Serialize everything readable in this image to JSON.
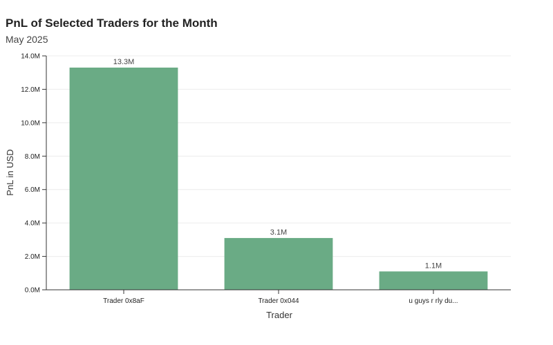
{
  "chart_data": {
    "type": "bar",
    "title": "PnL of Selected Traders for the Month",
    "subtitle": "May 2025",
    "xlabel": "Trader",
    "ylabel": "PnL in USD",
    "categories": [
      "Trader 0x8aF",
      "Trader 0x044",
      "u guys r rly du..."
    ],
    "values": [
      13300000,
      3100000,
      1100000
    ],
    "value_labels": [
      "13.3M",
      "3.1M",
      "1.1M"
    ],
    "y_ticks": [
      0,
      2000000,
      4000000,
      6000000,
      8000000,
      10000000,
      12000000,
      14000000
    ],
    "y_tick_labels": [
      "0.0M",
      "2.0M",
      "4.0M",
      "6.0M",
      "8.0M",
      "10.0M",
      "12.0M",
      "14.0M"
    ],
    "ylim": [
      0,
      14000000
    ],
    "grid": true,
    "bar_color": "#6aab85"
  }
}
